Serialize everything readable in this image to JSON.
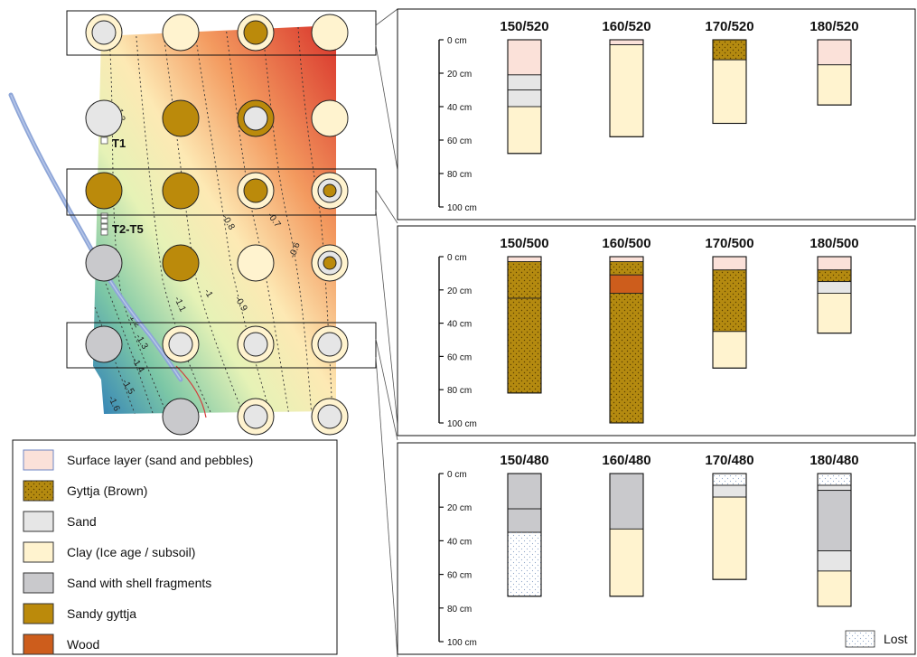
{
  "colors": {
    "surface": "#fbe1d9",
    "gyttja": "#b48a10",
    "sand": "#e6e6e6",
    "clay": "#fff3cf",
    "shell": "#c9c9cc",
    "sandy_gyttja": "#bb8a0b",
    "wood": "#cd5d1c",
    "lost": "#ffffff",
    "river": "#8ea6d8",
    "channel": "#d43a3a"
  },
  "map": {
    "transect_labels": [
      "T1",
      "T2-T5"
    ],
    "contour_labels": [
      "-1.2",
      "-0.8",
      "-0.7",
      "-0.6",
      "-1.1",
      "-1",
      "-0.9",
      "-1.2",
      "-1.3",
      "-1.4",
      "-1.5",
      "-1.6"
    ],
    "sites": [
      {
        "ring": "clay",
        "core": "sand"
      },
      {
        "ring": "clay",
        "core": "clay"
      },
      {
        "ring": "clay",
        "core": "sandy_gyttja"
      },
      {
        "ring": "clay",
        "core": "clay"
      },
      {
        "ring": "sand",
        "core": "sand"
      },
      {
        "ring": "sandy_gyttja",
        "core": "sandy_gyttja"
      },
      {
        "ring": "sandy_gyttja",
        "core": "sand"
      },
      {
        "ring": "clay",
        "core": "clay"
      },
      {
        "ring": "sandy_gyttja",
        "core": "sandy_gyttja"
      },
      {
        "ring": "sandy_gyttja",
        "core": "sandy_gyttja"
      },
      {
        "ring": "clay",
        "core": "sandy_gyttja"
      },
      {
        "ring": "clay",
        "core": "sandy_gyttja",
        "triple": true
      },
      {
        "ring": "shell",
        "core": "shell"
      },
      {
        "ring": "sandy_gyttja",
        "core": "sandy_gyttja"
      },
      {
        "ring": "clay",
        "core": "clay"
      },
      {
        "ring": "clay",
        "core": "sandy_gyttja",
        "triple": true
      },
      {
        "ring": "shell",
        "core": "shell"
      },
      {
        "ring": "clay",
        "core": "sand"
      },
      {
        "ring": "clay",
        "core": "sand"
      },
      {
        "ring": "clay",
        "core": "sand"
      },
      {
        "ring": "shell",
        "core": "shell"
      },
      {
        "ring": "clay",
        "core": "sand"
      },
      {
        "ring": "clay",
        "core": "sand"
      }
    ]
  },
  "legend": {
    "items": [
      {
        "key": "surface",
        "label": "Surface layer (sand and pebbles)"
      },
      {
        "key": "gyttja",
        "label": "Gyttja (Brown)"
      },
      {
        "key": "sand",
        "label": "Sand"
      },
      {
        "key": "clay",
        "label": "Clay (Ice age / subsoil)"
      },
      {
        "key": "shell",
        "label": "Sand with shell fragments"
      },
      {
        "key": "sandy_gyttja",
        "label": "Sandy gyttja"
      },
      {
        "key": "wood",
        "label": "Wood"
      }
    ],
    "lost_label": "Lost"
  },
  "depth_scale": {
    "ticks": [
      "0 cm",
      "20 cm",
      "40 cm",
      "60 cm",
      "80 cm",
      "100 cm"
    ]
  },
  "panels": [
    {
      "cores": [
        {
          "label": "150/520",
          "layers": [
            {
              "type": "surface",
              "from": 0,
              "to": 21
            },
            {
              "type": "sand",
              "from": 21,
              "to": 30
            },
            {
              "type": "sand",
              "from": 30,
              "to": 40
            },
            {
              "type": "clay",
              "from": 40,
              "to": 68
            }
          ]
        },
        {
          "label": "160/520",
          "layers": [
            {
              "type": "surface",
              "from": 0,
              "to": 3
            },
            {
              "type": "clay",
              "from": 3,
              "to": 58
            }
          ]
        },
        {
          "label": "170/520",
          "layers": [
            {
              "type": "gyttja",
              "from": 0,
              "to": 12
            },
            {
              "type": "clay",
              "from": 12,
              "to": 50
            }
          ]
        },
        {
          "label": "180/520",
          "layers": [
            {
              "type": "surface",
              "from": 0,
              "to": 15
            },
            {
              "type": "clay",
              "from": 15,
              "to": 39
            }
          ]
        }
      ]
    },
    {
      "cores": [
        {
          "label": "150/500",
          "layers": [
            {
              "type": "surface",
              "from": 0,
              "to": 3
            },
            {
              "type": "gyttja",
              "from": 3,
              "to": 25
            },
            {
              "type": "gyttja",
              "from": 25,
              "to": 82
            }
          ]
        },
        {
          "label": "160/500",
          "layers": [
            {
              "type": "surface",
              "from": 0,
              "to": 3
            },
            {
              "type": "gyttja",
              "from": 3,
              "to": 11
            },
            {
              "type": "wood",
              "from": 11,
              "to": 22
            },
            {
              "type": "gyttja",
              "from": 22,
              "to": 100
            }
          ]
        },
        {
          "label": "170/500",
          "layers": [
            {
              "type": "surface",
              "from": 0,
              "to": 8
            },
            {
              "type": "gyttja",
              "from": 8,
              "to": 45
            },
            {
              "type": "clay",
              "from": 45,
              "to": 67
            }
          ]
        },
        {
          "label": "180/500",
          "layers": [
            {
              "type": "surface",
              "from": 0,
              "to": 8
            },
            {
              "type": "gyttja",
              "from": 8,
              "to": 15
            },
            {
              "type": "sand",
              "from": 15,
              "to": 22
            },
            {
              "type": "clay",
              "from": 22,
              "to": 46
            }
          ]
        }
      ]
    },
    {
      "cores": [
        {
          "label": "150/480",
          "layers": [
            {
              "type": "shell",
              "from": 0,
              "to": 21
            },
            {
              "type": "shell",
              "from": 21,
              "to": 35
            },
            {
              "type": "lost",
              "from": 35,
              "to": 73
            }
          ]
        },
        {
          "label": "160/480",
          "layers": [
            {
              "type": "shell",
              "from": 0,
              "to": 33
            },
            {
              "type": "clay",
              "from": 33,
              "to": 73
            }
          ]
        },
        {
          "label": "170/480",
          "layers": [
            {
              "type": "lost",
              "from": 0,
              "to": 7
            },
            {
              "type": "sand",
              "from": 7,
              "to": 14
            },
            {
              "type": "clay",
              "from": 14,
              "to": 63
            }
          ]
        },
        {
          "label": "180/480",
          "layers": [
            {
              "type": "lost",
              "from": 0,
              "to": 7
            },
            {
              "type": "sand",
              "from": 7,
              "to": 10
            },
            {
              "type": "shell",
              "from": 10,
              "to": 46
            },
            {
              "type": "sand",
              "from": 46,
              "to": 58
            },
            {
              "type": "clay",
              "from": 58,
              "to": 79
            }
          ]
        }
      ]
    }
  ]
}
